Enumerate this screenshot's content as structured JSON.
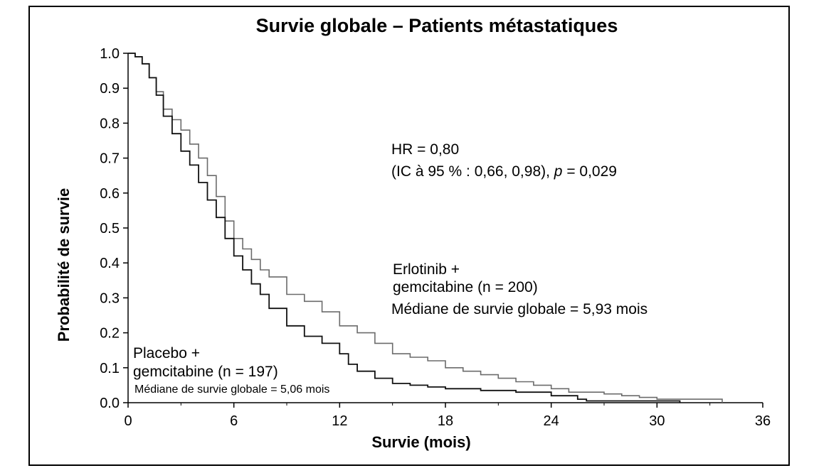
{
  "chart_data": {
    "type": "line",
    "title": "Survie globale – Patients métastatiques",
    "xlabel": "Survie (mois)",
    "ylabel": "Probabilité de survie",
    "xlim": [
      0,
      36
    ],
    "ylim": [
      0,
      1
    ],
    "x_ticks": [
      "0",
      "6",
      "12",
      "18",
      "24",
      "30",
      "36"
    ],
    "y_ticks": [
      "0.0",
      "0.1",
      "0.2",
      "0.3",
      "0.4",
      "0.5",
      "0.6",
      "0.7",
      "0.8",
      "0.9",
      "1.0"
    ],
    "grid": false,
    "series": [
      {
        "name": "Erlotinib + gemcitabine (n = 200)",
        "color": "#6b6b6b",
        "x": [
          0,
          0.4,
          0.8,
          1.2,
          1.6,
          2,
          2.5,
          3,
          3.5,
          4,
          4.5,
          5,
          5.5,
          6,
          6.5,
          7,
          7.5,
          8,
          9,
          10,
          11,
          12,
          13,
          14,
          15,
          16,
          17,
          18,
          19,
          20,
          21,
          22,
          23,
          24,
          25,
          26,
          27,
          28,
          29,
          30,
          31,
          32,
          33,
          33.7,
          33.7
        ],
        "y": [
          1.0,
          0.99,
          0.97,
          0.93,
          0.89,
          0.84,
          0.81,
          0.78,
          0.74,
          0.7,
          0.65,
          0.59,
          0.52,
          0.47,
          0.44,
          0.41,
          0.38,
          0.36,
          0.31,
          0.29,
          0.26,
          0.22,
          0.2,
          0.17,
          0.14,
          0.13,
          0.12,
          0.1,
          0.09,
          0.08,
          0.07,
          0.06,
          0.05,
          0.04,
          0.03,
          0.03,
          0.025,
          0.02,
          0.015,
          0.01,
          0.01,
          0.01,
          0.01,
          0.01,
          0.0
        ]
      },
      {
        "name": "Placebo + gemcitabine (n = 197)",
        "color": "#111111",
        "x": [
          0,
          0.4,
          0.8,
          1.2,
          1.6,
          2,
          2.5,
          3,
          3.5,
          4,
          4.5,
          5,
          5.5,
          6,
          6.5,
          7,
          7.5,
          8,
          9,
          10,
          11,
          12,
          12.5,
          13,
          14,
          15,
          16,
          17,
          18,
          20,
          22,
          24,
          25.5,
          26,
          28,
          30,
          31.3,
          31.3
        ],
        "y": [
          1.0,
          0.99,
          0.97,
          0.93,
          0.88,
          0.82,
          0.77,
          0.72,
          0.68,
          0.63,
          0.58,
          0.53,
          0.47,
          0.42,
          0.38,
          0.34,
          0.31,
          0.27,
          0.22,
          0.19,
          0.17,
          0.14,
          0.11,
          0.09,
          0.07,
          0.055,
          0.05,
          0.045,
          0.04,
          0.035,
          0.03,
          0.02,
          0.01,
          0.005,
          0.005,
          0.005,
          0.005,
          0.0
        ]
      }
    ]
  },
  "annotations": {
    "hr": "HR = 0,80",
    "ci_prefix": "(IC à 95 % : 0,66, 0,98), ",
    "p_italic": "p",
    "p_value": " = 0,029",
    "erlotinib_line1": "Erlotinib +",
    "erlotinib_line2": "gemcitabine (n = 200)",
    "erlotinib_median": "Médiane de survie globale = 5,93 mois",
    "placebo_line1": "Placebo +",
    "placebo_line2": "gemcitabine (n = 197)",
    "placebo_median": "Médiane de survie globale = 5,06 mois"
  }
}
